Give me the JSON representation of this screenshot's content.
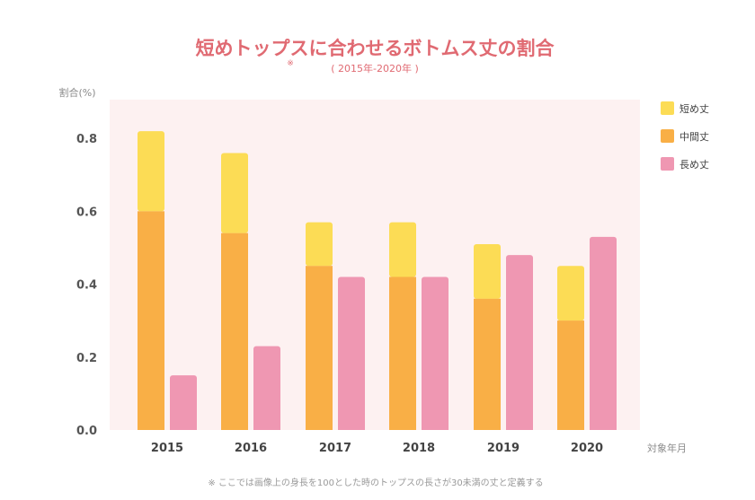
{
  "chart_data": {
    "type": "bar",
    "title": "短めトップスに合わせるボトムス丈の割合",
    "title_mark": "※",
    "subtitle": "( 2015年-2020年 )",
    "ylabel": "割合(%)",
    "xlabel": "対象年月",
    "ylim": [
      0,
      0.9
    ],
    "yticks": [
      "0.0",
      "0.2",
      "0.4",
      "0.6",
      "0.8"
    ],
    "categories": [
      "2015",
      "2016",
      "2017",
      "2018",
      "2019",
      "2020"
    ],
    "series": [
      {
        "name": "短め丈",
        "color": "#fcdc55",
        "stack": "a",
        "values": [
          0.22,
          0.22,
          0.12,
          0.15,
          0.15,
          0.15
        ]
      },
      {
        "name": "中間丈",
        "color": "#f9af46",
        "stack": "a",
        "values": [
          0.6,
          0.54,
          0.45,
          0.42,
          0.36,
          0.3
        ]
      },
      {
        "name": "長め丈",
        "color": "#ef97b2",
        "stack": "b",
        "values": [
          0.15,
          0.23,
          0.42,
          0.42,
          0.48,
          0.53
        ]
      }
    ],
    "legend_position": "right",
    "plot_background": "#fdf1f1",
    "grid": false,
    "footnote": "※ ここでは画像上の身長を100とした時のトップスの長さが30未満の丈と定義する"
  }
}
